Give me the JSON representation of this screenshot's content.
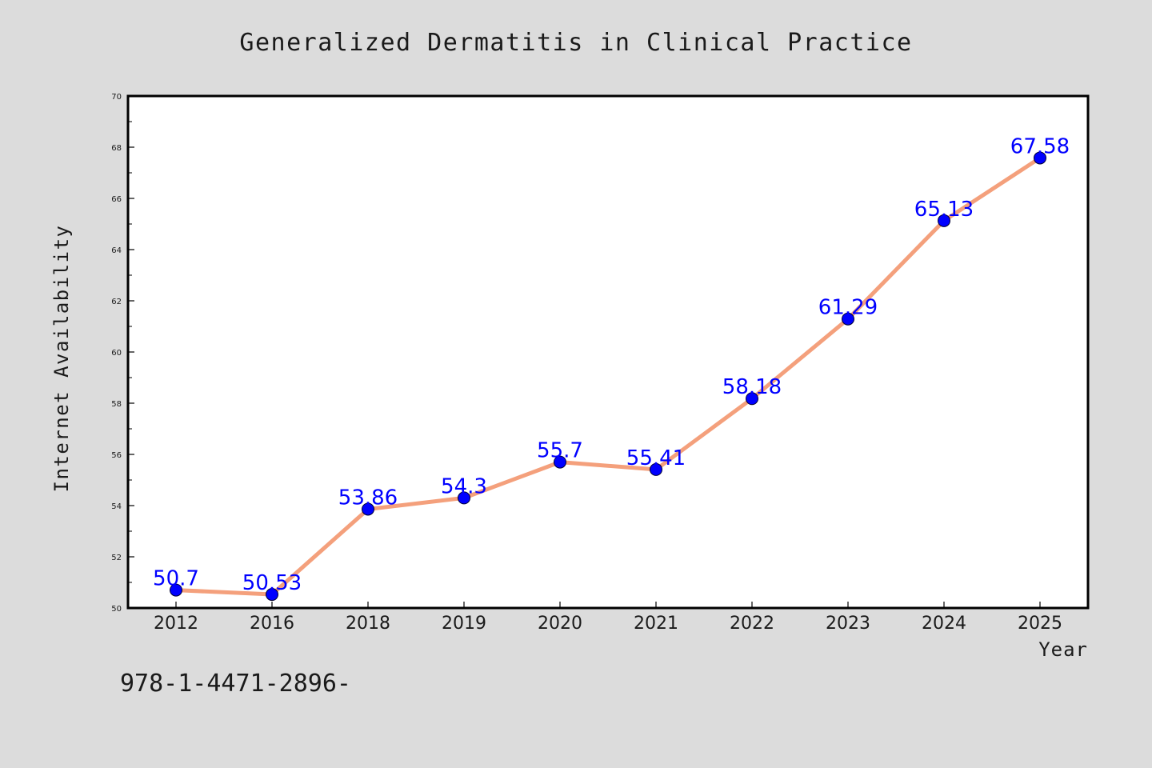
{
  "chart_data": {
    "type": "line",
    "title": "Generalized Dermatitis in Clinical Practice",
    "xlabel": "Year",
    "ylabel": "Internet Availability",
    "categories": [
      "2012",
      "2016",
      "2018",
      "2019",
      "2020",
      "2021",
      "2022",
      "2023",
      "2024",
      "2025"
    ],
    "series": [
      {
        "values": [
          50.7,
          50.53,
          53.86,
          54.3,
          55.7,
          55.41,
          58.18,
          61.29,
          65.13,
          67.58
        ],
        "data_labels": [
          "50.7",
          "50.53",
          "53.86",
          "54.3",
          "55.7",
          "55.41",
          "58.18",
          "61.29",
          "65.13",
          "67.58"
        ]
      }
    ],
    "ylim": [
      50,
      70
    ],
    "yticks": [
      "50",
      "52",
      "54",
      "56",
      "58",
      "60",
      "62",
      "64",
      "66",
      "68",
      "70"
    ],
    "grid": false,
    "legend": "none",
    "colors": {
      "background": "#dcdcdc",
      "plot_background": "#ffffff",
      "line": "#f4a07c",
      "marker": "#0000ff",
      "data_label": "#0000ff",
      "text": "#1a1a1a"
    }
  },
  "footnote": "978-1-4471-2896-"
}
